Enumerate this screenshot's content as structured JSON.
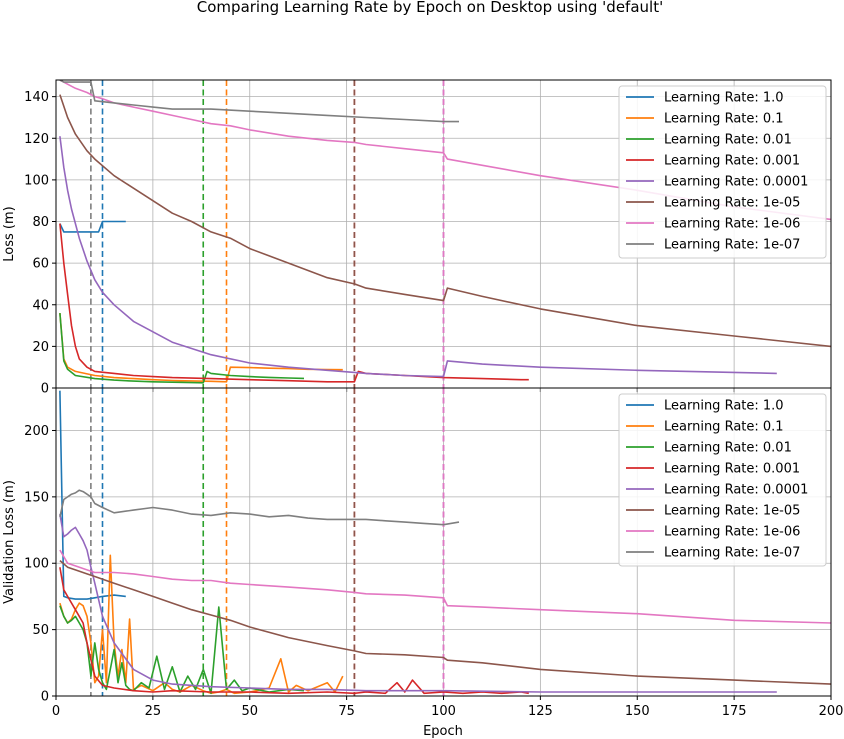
{
  "figure": {
    "title": "Comparing Learning Rate by Epoch on Desktop using 'default'",
    "xlabel": "Epoch"
  },
  "colors": {
    "lr_1.0": "#1f77b4",
    "lr_0.1": "#ff7f0e",
    "lr_0.01": "#2ca02c",
    "lr_0.001": "#d62728",
    "lr_0.0001": "#9467bd",
    "lr_1e-05": "#8c564b",
    "lr_1e-06": "#e377c2",
    "lr_1e-07": "#7f7f7f",
    "grid": "#b0b0b0"
  },
  "chart_data": [
    {
      "type": "line",
      "id": "loss",
      "title": "",
      "xlabel": "",
      "ylabel": "Loss (m)",
      "xlim": [
        0,
        200
      ],
      "ylim": [
        0,
        148
      ],
      "xticks": [
        0,
        25,
        50,
        75,
        100,
        125,
        150,
        175,
        200
      ],
      "yticks": [
        0,
        20,
        40,
        60,
        80,
        100,
        120,
        140
      ],
      "grid": true,
      "legend": "top-right",
      "series": [
        {
          "name": "Learning Rate: 1.0",
          "color_key": "lr_1.0",
          "x": [
            1,
            2,
            3,
            5,
            8,
            11,
            12,
            13,
            15,
            18
          ],
          "y": [
            79,
            75,
            75,
            75,
            75,
            75,
            80,
            80,
            80,
            80
          ]
        },
        {
          "name": "Learning Rate: 0.1",
          "color_key": "lr_0.1",
          "x": [
            1,
            2,
            3,
            5,
            10,
            15,
            20,
            25,
            30,
            35,
            40,
            44,
            45,
            50,
            55,
            60,
            65,
            70,
            74
          ],
          "y": [
            36,
            14,
            10,
            8,
            6,
            5,
            4.5,
            4,
            3.6,
            3.4,
            3.2,
            3,
            10,
            9.8,
            9.5,
            9.3,
            9,
            8.9,
            8.8
          ]
        },
        {
          "name": "Learning Rate: 0.01",
          "color_key": "lr_0.01",
          "x": [
            1,
            2,
            3,
            5,
            10,
            15,
            20,
            25,
            30,
            35,
            38,
            39,
            40,
            45,
            50,
            55,
            60,
            64
          ],
          "y": [
            36,
            13,
            9,
            6,
            4.5,
            3.8,
            3.3,
            3,
            2.8,
            2.6,
            2.5,
            8,
            7,
            6,
            5.5,
            5.1,
            4.8,
            4.6
          ]
        },
        {
          "name": "Learning Rate: 0.001",
          "color_key": "lr_0.001",
          "x": [
            1,
            2,
            3,
            4,
            5,
            6,
            8,
            10,
            15,
            20,
            25,
            30,
            40,
            50,
            60,
            70,
            77,
            78,
            80,
            90,
            100,
            110,
            120,
            122
          ],
          "y": [
            79,
            60,
            45,
            30,
            20,
            14,
            10,
            8,
            7,
            6,
            5.5,
            5,
            4.5,
            4,
            3.5,
            3,
            3,
            8,
            7,
            6,
            5,
            4.5,
            4,
            4
          ]
        },
        {
          "name": "Learning Rate: 0.0001",
          "color_key": "lr_0.0001",
          "x": [
            1,
            2,
            3,
            4,
            6,
            8,
            10,
            12,
            15,
            20,
            25,
            30,
            40,
            50,
            60,
            70,
            77,
            80,
            90,
            100,
            101,
            110,
            125,
            150,
            175,
            186
          ],
          "y": [
            121,
            106,
            95,
            86,
            72,
            61,
            52,
            46,
            40,
            32,
            27,
            22,
            16,
            12,
            10,
            8.5,
            7.5,
            7,
            6,
            5.5,
            13,
            11.5,
            10,
            8.5,
            7.5,
            7
          ]
        },
        {
          "name": "Learning Rate: 1e-05",
          "color_key": "lr_1e-05",
          "x": [
            1,
            3,
            5,
            8,
            10,
            15,
            20,
            25,
            30,
            35,
            40,
            45,
            50,
            60,
            70,
            77,
            80,
            90,
            100,
            101,
            110,
            125,
            150,
            175,
            200
          ],
          "y": [
            141,
            130,
            122,
            114,
            110,
            102,
            96,
            90,
            84,
            80,
            75,
            72,
            67,
            60,
            53,
            50,
            48,
            45,
            42,
            48,
            44,
            38,
            30,
            25,
            20
          ]
        },
        {
          "name": "Learning Rate: 1e-06",
          "color_key": "lr_1e-06",
          "x": [
            1,
            3,
            5,
            8,
            10,
            12,
            15,
            20,
            25,
            30,
            35,
            40,
            45,
            50,
            60,
            70,
            77,
            80,
            90,
            100,
            101,
            110,
            125,
            150,
            175,
            200
          ],
          "y": [
            148,
            146,
            144,
            142,
            140,
            139,
            137,
            135,
            133,
            131,
            129,
            127,
            126,
            124,
            121,
            119,
            118,
            117,
            115,
            113,
            110,
            107,
            102,
            95,
            87,
            81
          ]
        },
        {
          "name": "Learning Rate: 1e-07",
          "color_key": "lr_1e-07",
          "x": [
            1,
            2,
            4,
            6,
            8,
            9,
            10,
            15,
            20,
            25,
            30,
            40,
            50,
            60,
            70,
            80,
            90,
            100,
            104
          ],
          "y": [
            148,
            147,
            147,
            147,
            147,
            147,
            138,
            137,
            136,
            135,
            134,
            134,
            133,
            132,
            131,
            130,
            129,
            128,
            128
          ]
        }
      ],
      "vlines": [
        {
          "x": 12,
          "color_key": "lr_1.0"
        },
        {
          "x": 44,
          "color_key": "lr_0.1"
        },
        {
          "x": 38,
          "color_key": "lr_0.01"
        },
        {
          "x": 77,
          "color_key": "lr_0.001"
        },
        {
          "x": 100,
          "color_key": "lr_0.0001"
        },
        {
          "x": 77,
          "color_key": "lr_1e-05"
        },
        {
          "x": 100,
          "color_key": "lr_1e-06"
        },
        {
          "x": 9,
          "color_key": "lr_1e-07"
        }
      ]
    },
    {
      "type": "line",
      "id": "val_loss",
      "title": "",
      "xlabel": "Epoch",
      "ylabel": "Validation Loss (m)",
      "xlim": [
        0,
        200
      ],
      "ylim": [
        0,
        232
      ],
      "xticks": [
        0,
        25,
        50,
        75,
        100,
        125,
        150,
        175,
        200
      ],
      "yticks": [
        0,
        50,
        100,
        150,
        200
      ],
      "grid": true,
      "legend": "top-right",
      "series": [
        {
          "name": "Learning Rate: 1.0",
          "color_key": "lr_1.0",
          "x": [
            1,
            2,
            3,
            5,
            8,
            10,
            12,
            15,
            18
          ],
          "y": [
            230,
            75,
            74,
            73,
            73,
            74,
            75,
            76,
            75
          ]
        },
        {
          "name": "Learning Rate: 0.1",
          "color_key": "lr_0.1",
          "x": [
            1,
            2,
            3,
            4,
            5,
            6,
            7,
            8,
            9,
            10,
            11,
            12,
            13,
            14,
            15,
            16,
            17,
            18,
            19,
            20,
            22,
            25,
            28,
            30,
            32,
            35,
            38,
            40,
            42,
            44,
            46,
            50,
            55,
            58,
            60,
            62,
            65,
            70,
            72,
            74
          ],
          "y": [
            70,
            60,
            55,
            58,
            65,
            70,
            68,
            60,
            40,
            10,
            15,
            50,
            10,
            106,
            40,
            15,
            35,
            10,
            58,
            5,
            8,
            4,
            10,
            5,
            3,
            8,
            4,
            2,
            3,
            5,
            2,
            3,
            6,
            28,
            3,
            8,
            4,
            10,
            3,
            15
          ]
        },
        {
          "name": "Learning Rate: 0.01",
          "color_key": "lr_0.01",
          "x": [
            1,
            2,
            3,
            4,
            5,
            6,
            7,
            8,
            9,
            10,
            11,
            12,
            13,
            14,
            15,
            16,
            17,
            18,
            19,
            20,
            22,
            24,
            26,
            28,
            30,
            32,
            34,
            36,
            38,
            40,
            42,
            44,
            46,
            48,
            50,
            55,
            60,
            64
          ],
          "y": [
            68,
            60,
            55,
            57,
            60,
            55,
            50,
            40,
            15,
            40,
            20,
            10,
            5,
            20,
            35,
            10,
            25,
            8,
            5,
            4,
            10,
            6,
            30,
            5,
            22,
            3,
            15,
            5,
            20,
            2,
            67,
            5,
            12,
            4,
            6,
            3,
            5,
            4
          ]
        },
        {
          "name": "Learning Rate: 0.001",
          "color_key": "lr_0.001",
          "x": [
            1,
            2,
            3,
            5,
            7,
            8,
            10,
            12,
            15,
            20,
            25,
            30,
            40,
            50,
            60,
            70,
            77,
            80,
            85,
            88,
            90,
            92,
            95,
            100,
            105,
            110,
            115,
            120,
            122
          ],
          "y": [
            97,
            80,
            75,
            65,
            55,
            40,
            15,
            8,
            6,
            4,
            3,
            4,
            3,
            3,
            2,
            3,
            2,
            3,
            2,
            10,
            3,
            12,
            2,
            3,
            2,
            3,
            2,
            3,
            2
          ]
        },
        {
          "name": "Learning Rate: 0.0001",
          "color_key": "lr_0.0001",
          "x": [
            1,
            2,
            3,
            4,
            5,
            6,
            7,
            8,
            9,
            10,
            12,
            15,
            20,
            25,
            30,
            40,
            50,
            60,
            70,
            80,
            90,
            100,
            125,
            150,
            175,
            186
          ],
          "y": [
            137,
            120,
            122,
            125,
            127,
            122,
            117,
            110,
            97,
            85,
            60,
            40,
            20,
            12,
            9,
            7,
            6,
            5,
            5,
            4,
            4,
            4,
            3,
            3,
            3,
            3
          ]
        },
        {
          "name": "Learning Rate: 1e-05",
          "color_key": "lr_1e-05",
          "x": [
            1,
            3,
            5,
            8,
            10,
            15,
            20,
            25,
            30,
            35,
            40,
            45,
            50,
            60,
            70,
            77,
            80,
            90,
            100,
            101,
            110,
            125,
            150,
            175,
            200
          ],
          "y": [
            102,
            97,
            95,
            92,
            90,
            85,
            80,
            75,
            70,
            65,
            61,
            57,
            52,
            44,
            38,
            34,
            32,
            31,
            29,
            27,
            25,
            20,
            15,
            12,
            9
          ]
        },
        {
          "name": "Learning Rate: 1e-06",
          "color_key": "lr_1e-06",
          "x": [
            1,
            3,
            5,
            8,
            10,
            15,
            20,
            25,
            30,
            35,
            40,
            45,
            50,
            60,
            70,
            77,
            80,
            90,
            100,
            101,
            110,
            125,
            150,
            175,
            200
          ],
          "y": [
            110,
            100,
            98,
            95,
            93,
            93,
            92,
            90,
            88,
            87,
            87,
            85,
            84,
            82,
            80,
            78,
            77,
            76,
            74,
            68,
            67,
            65,
            62,
            57,
            55
          ]
        },
        {
          "name": "Learning Rate: 1e-07",
          "color_key": "lr_1e-07",
          "x": [
            1,
            2,
            3,
            4,
            5,
            6,
            7,
            8,
            9,
            10,
            12,
            15,
            20,
            25,
            30,
            35,
            40,
            45,
            50,
            55,
            60,
            65,
            70,
            75,
            80,
            85,
            90,
            95,
            100,
            104
          ],
          "y": [
            135,
            148,
            150,
            152,
            153,
            155,
            154,
            152,
            150,
            145,
            142,
            138,
            140,
            142,
            140,
            137,
            136,
            138,
            137,
            135,
            136,
            134,
            133,
            133,
            133,
            132,
            131,
            130,
            129,
            131
          ]
        }
      ],
      "vlines": [
        {
          "x": 12,
          "color_key": "lr_1.0"
        },
        {
          "x": 44,
          "color_key": "lr_0.1"
        },
        {
          "x": 38,
          "color_key": "lr_0.01"
        },
        {
          "x": 77,
          "color_key": "lr_0.001"
        },
        {
          "x": 100,
          "color_key": "lr_0.0001"
        },
        {
          "x": 77,
          "color_key": "lr_1e-05"
        },
        {
          "x": 100,
          "color_key": "lr_1e-06"
        },
        {
          "x": 9,
          "color_key": "lr_1e-07"
        }
      ]
    }
  ]
}
